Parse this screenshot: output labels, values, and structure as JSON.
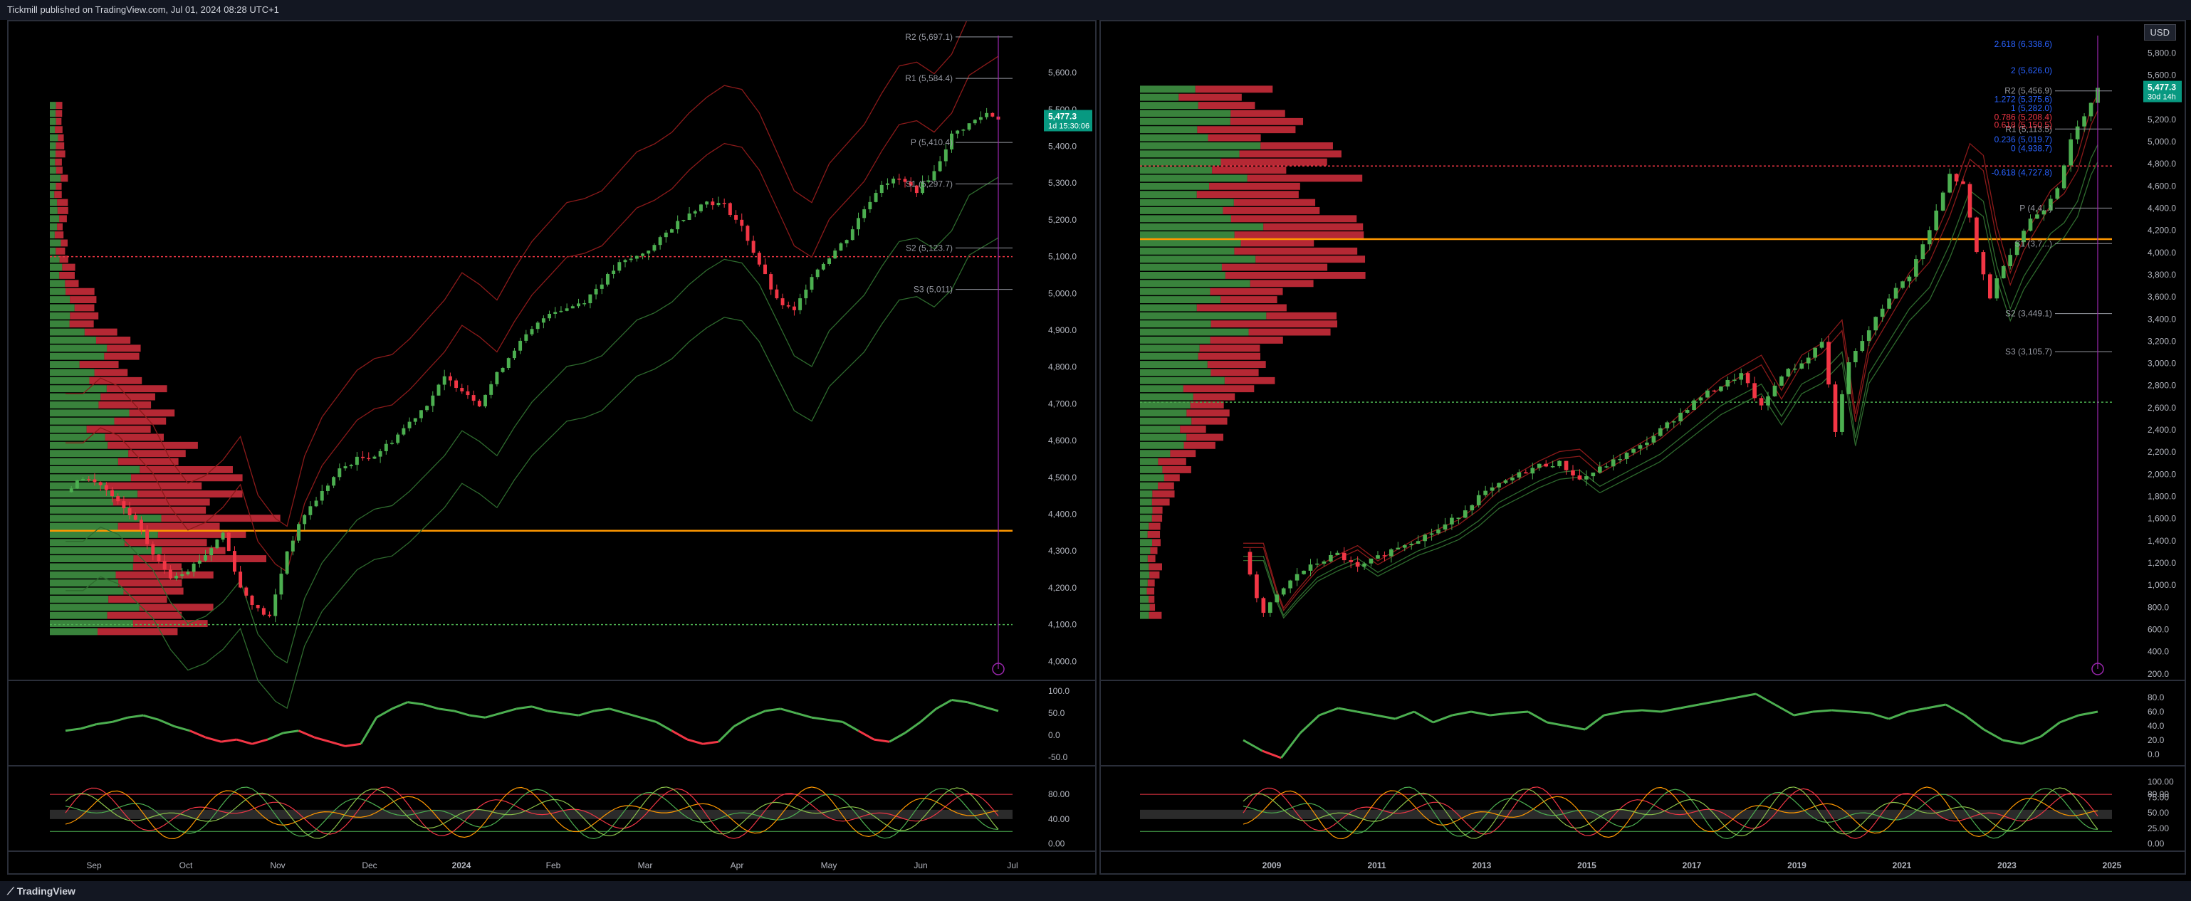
{
  "header": {
    "published": "Tickmill published on TradingView.com, Jul 01, 2024 08:28 UTC+1"
  },
  "footer": {
    "brand": "TradingView"
  },
  "colors": {
    "up": "#4caf50",
    "down": "#f23645",
    "vwap": "#ff9800",
    "pivot": "#787b86",
    "fib": "#2962ff"
  },
  "chart_data": [
    {
      "type": "candlestick",
      "name": "left",
      "x_ticks": [
        "Sep",
        "Oct",
        "Nov",
        "Dec",
        "2024",
        "Feb",
        "Mar",
        "Apr",
        "May",
        "Jun",
        "Jul"
      ],
      "y_ticks": [
        "5,600.0",
        "5,500.0",
        "5,400.0",
        "5,300.0",
        "5,200.0",
        "5,100.0",
        "5,000.0",
        "4,900.0",
        "4,800.0",
        "4,700.0",
        "4,600.0",
        "4,500.0",
        "4,400.0",
        "4,300.0",
        "4,200.0",
        "4,100.0",
        "4,000.0"
      ],
      "ylim": [
        3960,
        5720
      ],
      "last_price": "5,477.3",
      "countdown": "1d 15:30:06",
      "pivots": [
        {
          "label": "R2 (5,697.1)",
          "value": 5697.1
        },
        {
          "label": "R1 (5,584.4)",
          "value": 5584.4
        },
        {
          "label": "P (5,410.4)",
          "value": 5410.4
        },
        {
          "label": "S1 (5,297.7)",
          "value": 5297.7
        },
        {
          "label": "S2 (5,123.7)",
          "value": 5123.7
        },
        {
          "label": "S3 (5,011)",
          "value": 5011
        }
      ],
      "poc_level": 4355,
      "support_level": 4100,
      "resistance_level": 5100,
      "close_path": [
        [
          0,
          4460
        ],
        [
          3,
          4500
        ],
        [
          6,
          4480
        ],
        [
          9,
          4430
        ],
        [
          12,
          4380
        ],
        [
          15,
          4290
        ],
        [
          18,
          4230
        ],
        [
          21,
          4250
        ],
        [
          24,
          4290
        ],
        [
          27,
          4350
        ],
        [
          30,
          4200
        ],
        [
          33,
          4140
        ],
        [
          35,
          4120
        ],
        [
          38,
          4300
        ],
        [
          41,
          4400
        ],
        [
          44,
          4460
        ],
        [
          47,
          4520
        ],
        [
          50,
          4550
        ],
        [
          53,
          4560
        ],
        [
          56,
          4600
        ],
        [
          59,
          4650
        ],
        [
          62,
          4700
        ],
        [
          65,
          4770
        ],
        [
          68,
          4740
        ],
        [
          71,
          4700
        ],
        [
          74,
          4780
        ],
        [
          77,
          4850
        ],
        [
          80,
          4900
        ],
        [
          83,
          4950
        ],
        [
          86,
          4960
        ],
        [
          89,
          4980
        ],
        [
          92,
          5030
        ],
        [
          95,
          5080
        ],
        [
          98,
          5100
        ],
        [
          101,
          5130
        ],
        [
          104,
          5180
        ],
        [
          107,
          5220
        ],
        [
          110,
          5250
        ],
        [
          113,
          5240
        ],
        [
          116,
          5180
        ],
        [
          119,
          5080
        ],
        [
          122,
          4980
        ],
        [
          125,
          4950
        ],
        [
          128,
          5050
        ],
        [
          131,
          5100
        ],
        [
          134,
          5150
        ],
        [
          137,
          5230
        ],
        [
          140,
          5300
        ],
        [
          143,
          5310
        ],
        [
          146,
          5280
        ],
        [
          149,
          5330
        ],
        [
          152,
          5430
        ],
        [
          155,
          5460
        ],
        [
          158,
          5490
        ],
        [
          160,
          5477
        ]
      ],
      "rsi": {
        "y_ticks": [
          "100.0",
          "50.0",
          "0.0",
          "-50.0"
        ],
        "ylim": [
          -60,
          110
        ],
        "values": [
          10,
          15,
          25,
          30,
          40,
          45,
          35,
          20,
          10,
          -5,
          -15,
          -10,
          -20,
          -10,
          5,
          10,
          -5,
          -15,
          -25,
          -20,
          40,
          60,
          75,
          70,
          60,
          55,
          45,
          40,
          50,
          60,
          65,
          55,
          50,
          45,
          55,
          60,
          50,
          40,
          30,
          10,
          -10,
          -20,
          -15,
          20,
          40,
          55,
          60,
          50,
          40,
          35,
          30,
          10,
          -10,
          -15,
          5,
          30,
          60,
          80,
          75,
          65,
          55
        ]
      },
      "stoch": {
        "y_ticks": [
          "80.00",
          "40.00",
          "0.00"
        ],
        "ylim": [
          -5,
          110
        ]
      }
    },
    {
      "type": "candlestick",
      "name": "right",
      "x_ticks": [
        "2009",
        "2011",
        "2013",
        "2015",
        "2017",
        "2019",
        "2021",
        "2023",
        "2025"
      ],
      "y_ticks": [
        "5,800.0",
        "5,600.0",
        "5,400.0",
        "5,200.0",
        "5,000.0",
        "4,800.0",
        "4,600.0",
        "4,400.0",
        "4,200.0",
        "4,000.0",
        "3,800.0",
        "3,600.0",
        "3,400.0",
        "3,200.0",
        "3,000.0",
        "2,800.0",
        "2,600.0",
        "2,400.0",
        "2,200.0",
        "2,000.0",
        "1,800.0",
        "1,600.0",
        "1,400.0",
        "1,200.0",
        "1,000.0",
        "800.0",
        "600.0",
        "400.0",
        "200.0"
      ],
      "ylim": [
        180,
        6020
      ],
      "last_price": "5,477.3",
      "countdown": "30d 14h",
      "currency": "USD",
      "pivots": [
        {
          "label": "R2 (5,456.9)",
          "value": 5456.9
        },
        {
          "label": "R1 (5,113.5)",
          "value": 5113.5
        },
        {
          "label": "P (4,4...)",
          "value": 4400
        },
        {
          "label": "S1 (3,7...)",
          "value": 4080
        },
        {
          "label": "S2 (3,449.1)",
          "value": 3449.1
        },
        {
          "label": "S3 (3,105.7)",
          "value": 3105.7
        }
      ],
      "fibs": [
        {
          "label": "2.618 (6,338.6)",
          "value": 5880
        },
        {
          "label": "2 (5,626.0)",
          "value": 5640
        },
        {
          "label": "1.272 (5,375.6)",
          "value": 5380
        },
        {
          "label": "1 (5,282.0)",
          "value": 5300
        },
        {
          "label": "0.786 (5,208.4)",
          "value": 5220
        },
        {
          "label": "0.618 (5,150.5)",
          "value": 5150
        },
        {
          "label": "0.236 (5,019.7)",
          "value": 5020
        },
        {
          "label": "0 (4,938.7)",
          "value": 4940
        },
        {
          "label": "-0.618 (4,727.8)",
          "value": 4720
        }
      ],
      "poc_level": 4120,
      "support_level": 2650,
      "resistance_level": 4780,
      "close_path": [
        [
          0,
          1300
        ],
        [
          1,
          1100
        ],
        [
          2,
          900
        ],
        [
          3,
          750
        ],
        [
          5,
          900
        ],
        [
          8,
          1100
        ],
        [
          11,
          1200
        ],
        [
          14,
          1280
        ],
        [
          17,
          1150
        ],
        [
          20,
          1250
        ],
        [
          23,
          1350
        ],
        [
          26,
          1420
        ],
        [
          29,
          1500
        ],
        [
          32,
          1630
        ],
        [
          35,
          1800
        ],
        [
          38,
          1900
        ],
        [
          41,
          2000
        ],
        [
          44,
          2080
        ],
        [
          47,
          2100
        ],
        [
          50,
          1950
        ],
        [
          53,
          2050
        ],
        [
          56,
          2150
        ],
        [
          59,
          2250
        ],
        [
          62,
          2400
        ],
        [
          65,
          2550
        ],
        [
          68,
          2700
        ],
        [
          71,
          2800
        ],
        [
          74,
          2900
        ],
        [
          77,
          2600
        ],
        [
          80,
          2900
        ],
        [
          83,
          3000
        ],
        [
          86,
          3200
        ],
        [
          88,
          2400
        ],
        [
          90,
          3000
        ],
        [
          93,
          3300
        ],
        [
          96,
          3600
        ],
        [
          99,
          3800
        ],
        [
          102,
          4200
        ],
        [
          105,
          4700
        ],
        [
          107,
          4600
        ],
        [
          109,
          4000
        ],
        [
          111,
          3600
        ],
        [
          113,
          3900
        ],
        [
          115,
          4100
        ],
        [
          117,
          4300
        ],
        [
          119,
          4400
        ],
        [
          121,
          4600
        ],
        [
          123,
          5000
        ],
        [
          125,
          5250
        ],
        [
          127,
          5477
        ]
      ],
      "rsi": {
        "y_ticks": [
          "80.0",
          "60.0",
          "40.0",
          "20.0",
          "0.0"
        ],
        "ylim": [
          -10,
          95
        ],
        "values": [
          20,
          5,
          -5,
          30,
          55,
          65,
          60,
          55,
          50,
          60,
          45,
          55,
          60,
          55,
          58,
          60,
          45,
          40,
          35,
          55,
          60,
          62,
          60,
          65,
          70,
          75,
          80,
          85,
          70,
          55,
          60,
          62,
          60,
          58,
          50,
          60,
          65,
          70,
          55,
          35,
          20,
          15,
          25,
          45,
          55,
          60
        ]
      },
      "stoch": {
        "y_ticks": [
          "100.00",
          "80.00",
          "75.00",
          "50.00",
          "25.00",
          "0.00"
        ],
        "ylim": [
          -5,
          110
        ]
      }
    }
  ]
}
